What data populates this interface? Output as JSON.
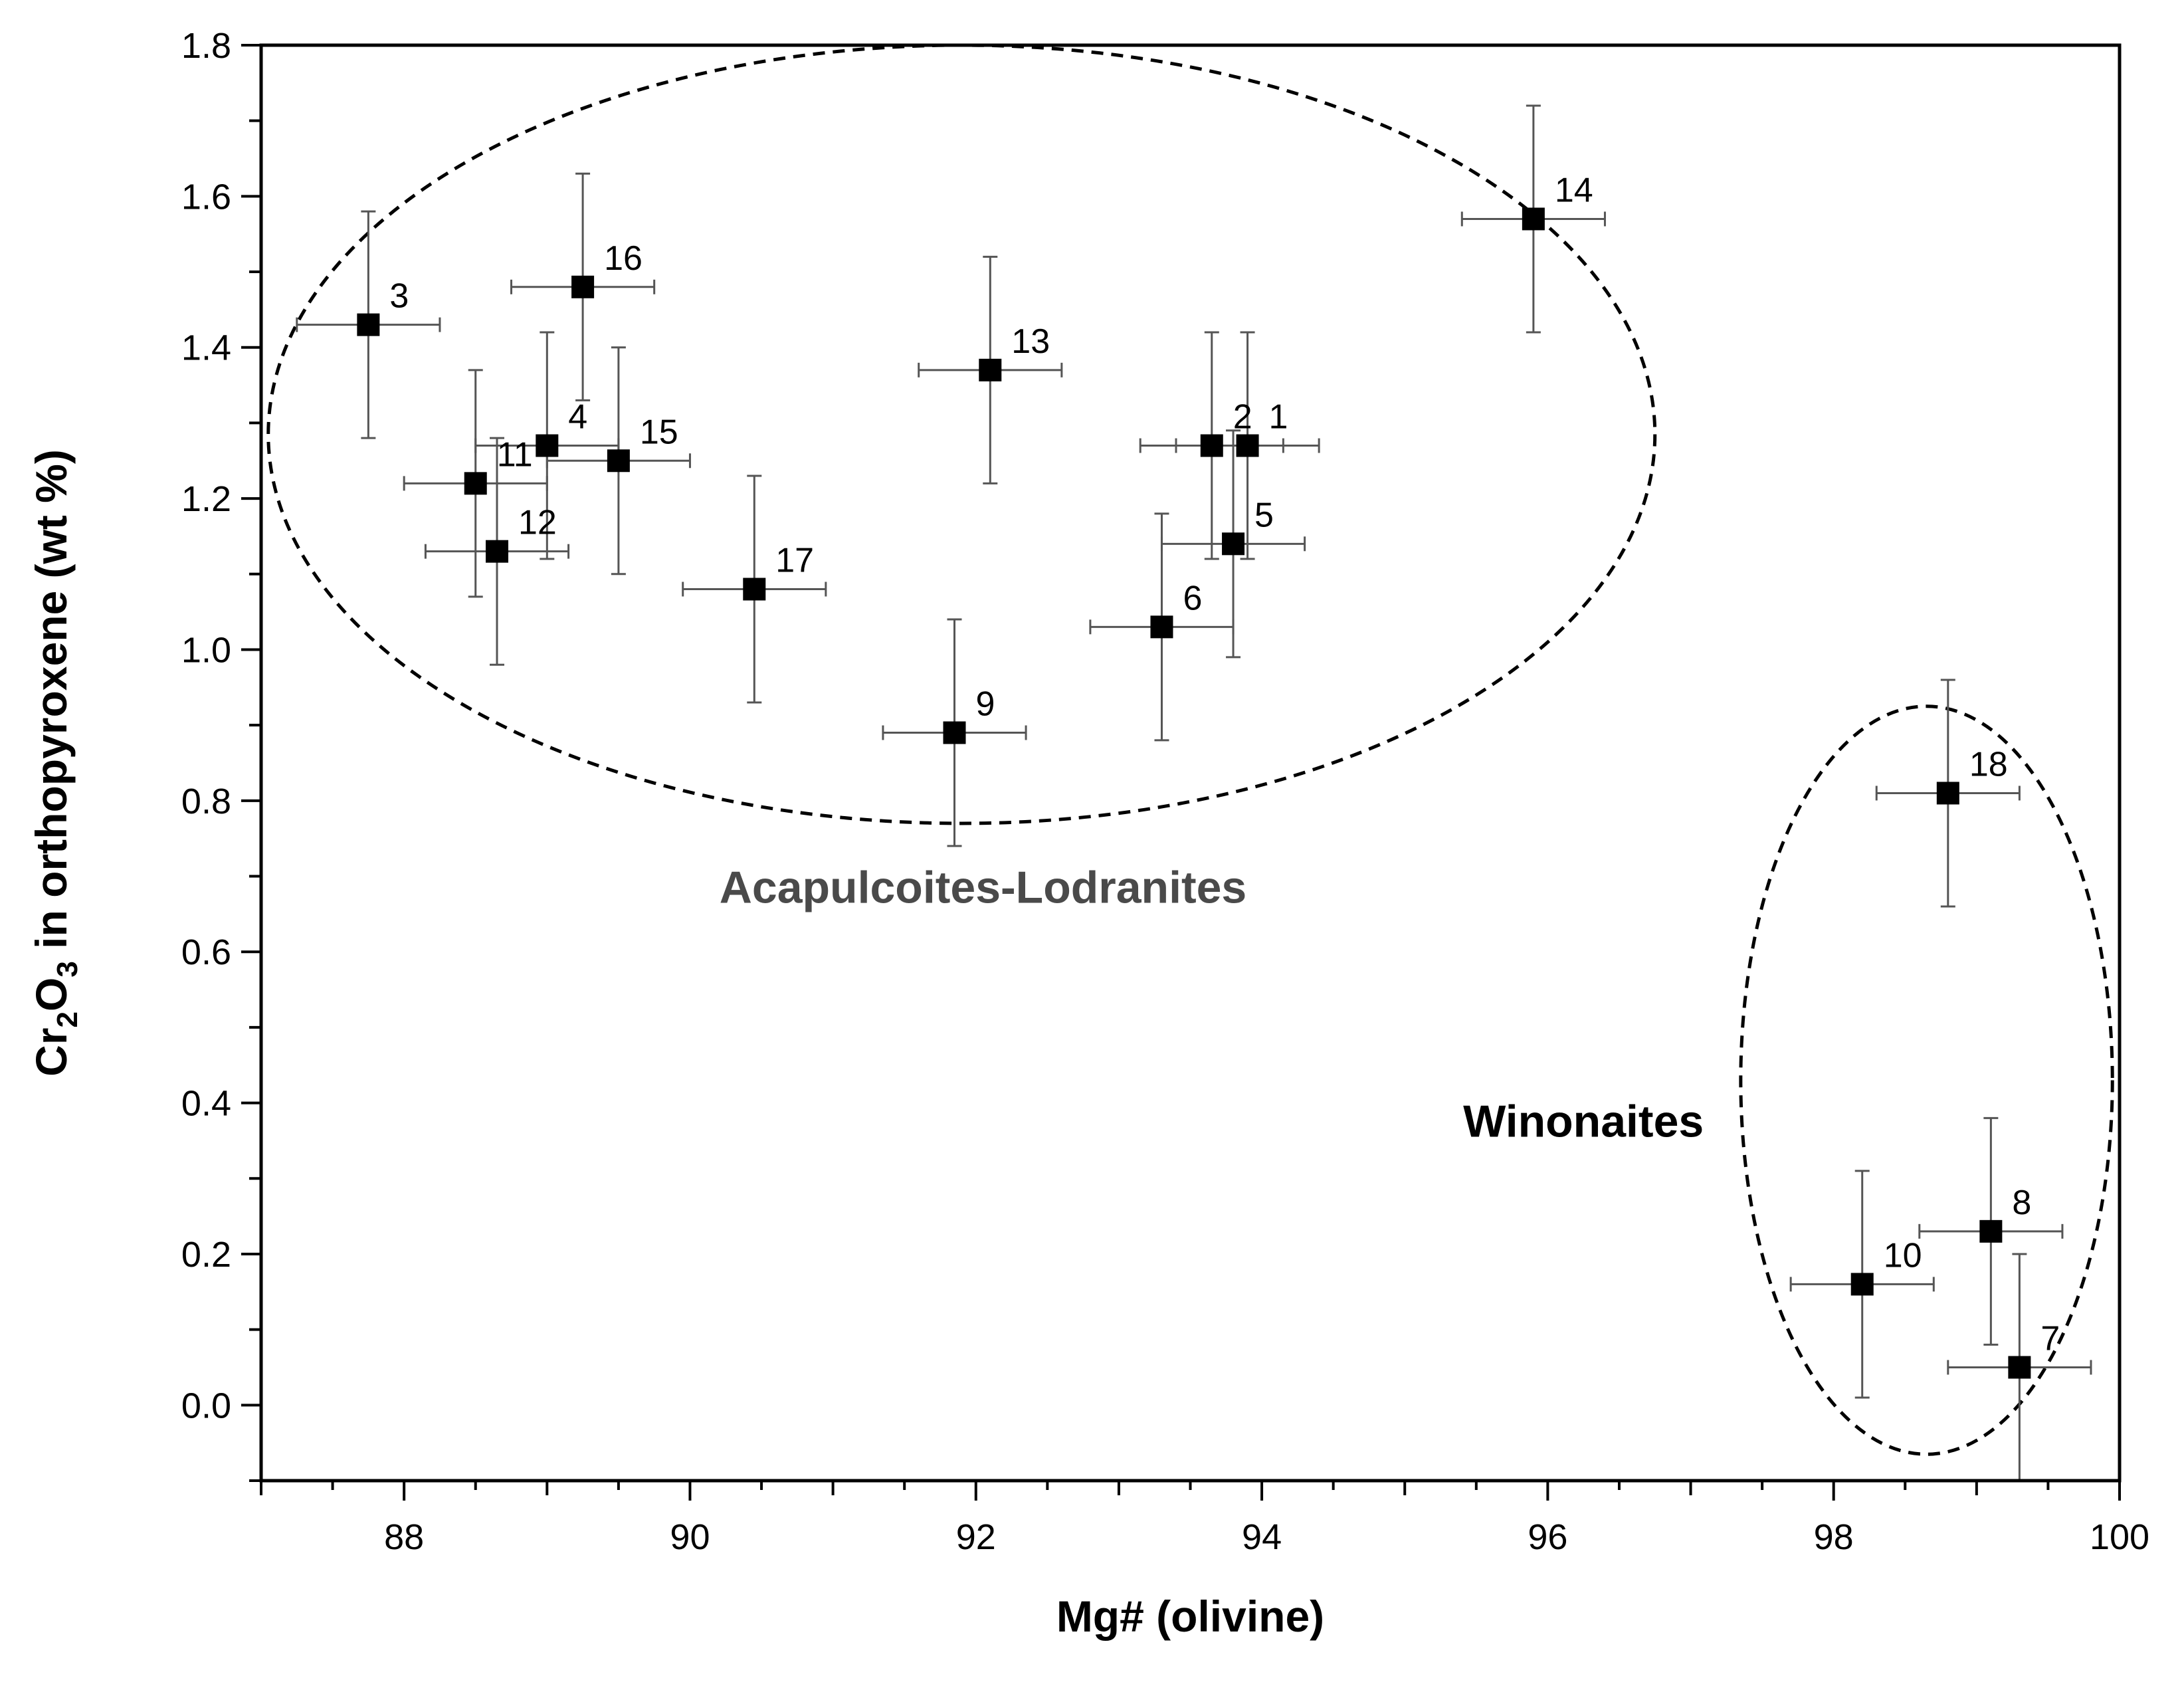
{
  "chart_data": {
    "type": "scatter",
    "title": "",
    "xlabel": "Mg# (olivine)",
    "ylabel": {
      "prefix": "Cr",
      "sub1": "2",
      "mid": "O",
      "sub2": "3",
      "suffix": " in orthopyroxene (wt %)"
    },
    "xlim": [
      87,
      100
    ],
    "ylim": [
      -0.1,
      1.8
    ],
    "xticks": [
      88,
      90,
      92,
      94,
      96,
      98,
      100
    ],
    "yticks": [
      0.0,
      0.2,
      0.4,
      0.6,
      0.8,
      1.0,
      1.2,
      1.4,
      1.6,
      1.8
    ],
    "xtick_labels": [
      "88",
      "90",
      "92",
      "94",
      "96",
      "98",
      "100"
    ],
    "ytick_labels": [
      "0.0",
      "0.2",
      "0.4",
      "0.6",
      "0.8",
      "1.0",
      "1.2",
      "1.4",
      "1.6",
      "1.8"
    ],
    "grid": false,
    "points": [
      {
        "label": "1",
        "x": 93.9,
        "y": 1.27,
        "xerr": 0.5,
        "yerr": 0.15
      },
      {
        "label": "2",
        "x": 93.65,
        "y": 1.27,
        "xerr": 0.5,
        "yerr": 0.15
      },
      {
        "label": "3",
        "x": 87.75,
        "y": 1.43,
        "xerr": 0.5,
        "yerr": 0.15
      },
      {
        "label": "4",
        "x": 89.0,
        "y": 1.27,
        "xerr": 0.5,
        "yerr": 0.15
      },
      {
        "label": "5",
        "x": 93.8,
        "y": 1.14,
        "xerr": 0.5,
        "yerr": 0.15
      },
      {
        "label": "6",
        "x": 93.3,
        "y": 1.03,
        "xerr": 0.5,
        "yerr": 0.15
      },
      {
        "label": "7",
        "x": 99.3,
        "y": 0.05,
        "xerr": 0.5,
        "yerr": 0.15
      },
      {
        "label": "8",
        "x": 99.1,
        "y": 0.23,
        "xerr": 0.5,
        "yerr": 0.15
      },
      {
        "label": "9",
        "x": 91.85,
        "y": 0.89,
        "xerr": 0.5,
        "yerr": 0.15
      },
      {
        "label": "10",
        "x": 98.2,
        "y": 0.16,
        "xerr": 0.5,
        "yerr": 0.15
      },
      {
        "label": "11",
        "x": 88.5,
        "y": 1.22,
        "xerr": 0.5,
        "yerr": 0.15
      },
      {
        "label": "12",
        "x": 88.65,
        "y": 1.13,
        "xerr": 0.5,
        "yerr": 0.15
      },
      {
        "label": "13",
        "x": 92.1,
        "y": 1.37,
        "xerr": 0.5,
        "yerr": 0.15
      },
      {
        "label": "14",
        "x": 95.9,
        "y": 1.57,
        "xerr": 0.5,
        "yerr": 0.15
      },
      {
        "label": "15",
        "x": 89.5,
        "y": 1.25,
        "xerr": 0.5,
        "yerr": 0.15
      },
      {
        "label": "16",
        "x": 89.25,
        "y": 1.48,
        "xerr": 0.5,
        "yerr": 0.15
      },
      {
        "label": "17",
        "x": 90.45,
        "y": 1.08,
        "xerr": 0.5,
        "yerr": 0.15
      },
      {
        "label": "18",
        "x": 98.8,
        "y": 0.81,
        "xerr": 0.5,
        "yerr": 0.15
      }
    ],
    "groups": [
      {
        "name": "Acapulcoites-Lodranites",
        "color": "#4a4a4a",
        "cx": 91.9,
        "cy": 1.285,
        "rx": 4.85,
        "ry": 0.515,
        "label_x": 92.05,
        "label_y": 0.665
      },
      {
        "name": "Winonaites",
        "color": "#000000",
        "cx": 98.65,
        "cy": 0.43,
        "rx": 1.3,
        "ry": 0.495,
        "label_x": 96.25,
        "label_y": 0.355
      }
    ]
  }
}
